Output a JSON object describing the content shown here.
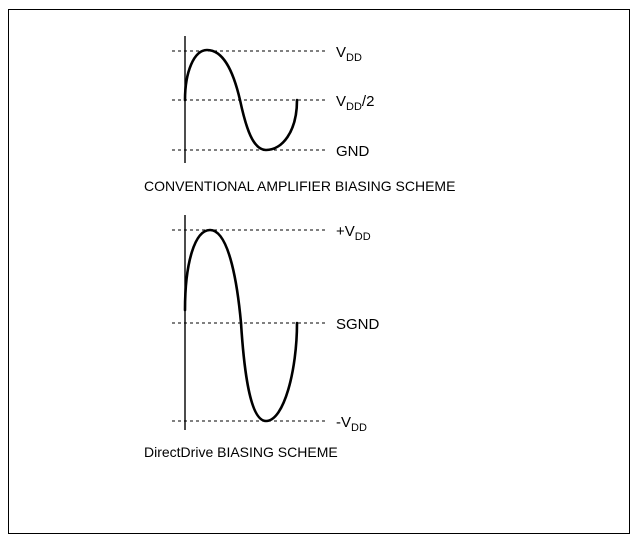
{
  "conventional": {
    "caption": "CONVENTIONAL AMPLIFIER BIASING SCHEME",
    "levels": {
      "vdd_main": "V",
      "vdd_sub": "DD",
      "half_main": "V",
      "half_sub": "DD",
      "half_suffix": "/2",
      "gnd": "GND"
    }
  },
  "directdrive": {
    "caption": "DirectDrive BIASING SCHEME",
    "levels": {
      "pos_main": "+V",
      "pos_sub": "DD",
      "sgnd": "SGND",
      "neg_main": "-V",
      "neg_sub": "DD"
    }
  }
}
